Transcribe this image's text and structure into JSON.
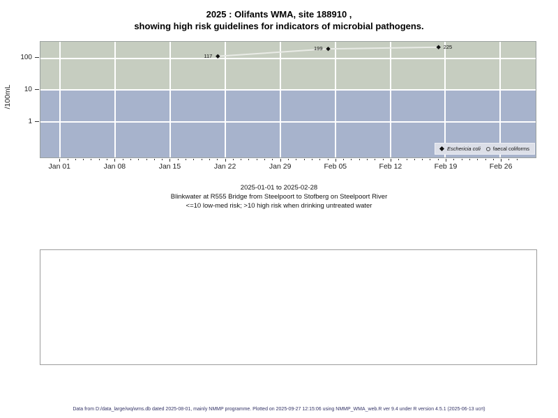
{
  "title": {
    "line1": "2025 : Olifants WMA, site 188910 ,",
    "line2": "showing high risk guidelines for indicators of microbial pathogens."
  },
  "chart": {
    "ylabel": "/100mL",
    "y_ticks": [
      {
        "label": "100",
        "value": 100
      },
      {
        "label": "10",
        "value": 10
      },
      {
        "label": "1",
        "value": 1
      }
    ],
    "x_ticks": [
      {
        "label": "Jan 01",
        "day": 0
      },
      {
        "label": "Jan 08",
        "day": 7
      },
      {
        "label": "Jan 15",
        "day": 14
      },
      {
        "label": "Jan 22",
        "day": 21
      },
      {
        "label": "Jan 29",
        "day": 28
      },
      {
        "label": "Feb 05",
        "day": 35
      },
      {
        "label": "Feb 12",
        "day": 42
      },
      {
        "label": "Feb 19",
        "day": 49
      },
      {
        "label": "Feb 26",
        "day": 56
      }
    ],
    "axis": {
      "day_min": -2.5,
      "day_max": 60.5,
      "minor_day_start": 0,
      "minor_day_end": 58,
      "log_top": 2.52,
      "log_bottom": -1.13,
      "band_split_value": 10
    },
    "points": [
      {
        "series": "Eschericia coli",
        "label": "117",
        "value": 117,
        "day": 20,
        "date": "2025-01-21",
        "label_side": "left"
      },
      {
        "series": "Eschericia coli",
        "label": "199",
        "value": 199,
        "day": 34,
        "date": "2025-02-04",
        "label_side": "left"
      },
      {
        "series": "Eschericia coli",
        "label": "225",
        "value": 225,
        "day": 48,
        "date": "2025-02-18",
        "label_side": "right"
      }
    ],
    "legend": [
      {
        "label": "Eschericia coli",
        "symbol": "filled-diamond",
        "italic": true
      },
      {
        "label": "faecal coliforms",
        "symbol": "open-circle",
        "italic": false
      }
    ],
    "colors": {
      "high_band": "#c6cdc0",
      "low_band": "#a7b3cc",
      "grid": "#ffffff",
      "line": "#e9ebe6",
      "marker": "#111111",
      "legend_bg": "#dcdfe8",
      "plot_border": "#9aa09e",
      "tick": "#333333"
    }
  },
  "chart_data": {
    "type": "line",
    "title": "2025 : Olifants WMA, site 188910 , showing high risk guidelines for indicators of microbial pathogens.",
    "xlabel": "",
    "ylabel": "/100mL",
    "y_scale": "log10",
    "x_range": [
      "2025-01-01",
      "2025-02-28"
    ],
    "x_tick_labels": [
      "Jan 01",
      "Jan 08",
      "Jan 15",
      "Jan 22",
      "Jan 29",
      "Feb 05",
      "Feb 12",
      "Feb 19",
      "Feb 26"
    ],
    "y_tick_labels": [
      100,
      10,
      1
    ],
    "grid": true,
    "legend_position": "bottom-right",
    "series": [
      {
        "name": "Eschericia coli",
        "marker": "filled-diamond",
        "x": [
          "2025-01-21",
          "2025-02-04",
          "2025-02-18"
        ],
        "values": [
          117,
          199,
          225
        ]
      },
      {
        "name": "faecal coliforms",
        "marker": "open-circle",
        "x": [],
        "values": []
      }
    ],
    "risk_bands": [
      {
        "label": "high risk (>10)",
        "y_from": 10,
        "y_to": "top",
        "color": "#c6cdc0"
      },
      {
        "label": "low-med risk (<=10)",
        "y_from": "bottom",
        "y_to": 10,
        "color": "#a7b3cc"
      }
    ]
  },
  "subtitle": {
    "line1": "2025-01-01 to 2025-02-28",
    "line2": "Blinkwater at R555 Bridge from Steelpoort to Stofberg on Steelpoort River",
    "line3": "<=10 low-med risk; >10 high risk when drinking untreated water"
  },
  "footer": {
    "text": "Data from D:/data_large/wq/wms.db dated 2025-08-01, mainly NMMP programme. Plotted on 2025-09-27 12:15:06 using NMMP_WMA_web.R ver 9.4 under R version 4.5.1 (2025-06-13 ucrt)"
  }
}
